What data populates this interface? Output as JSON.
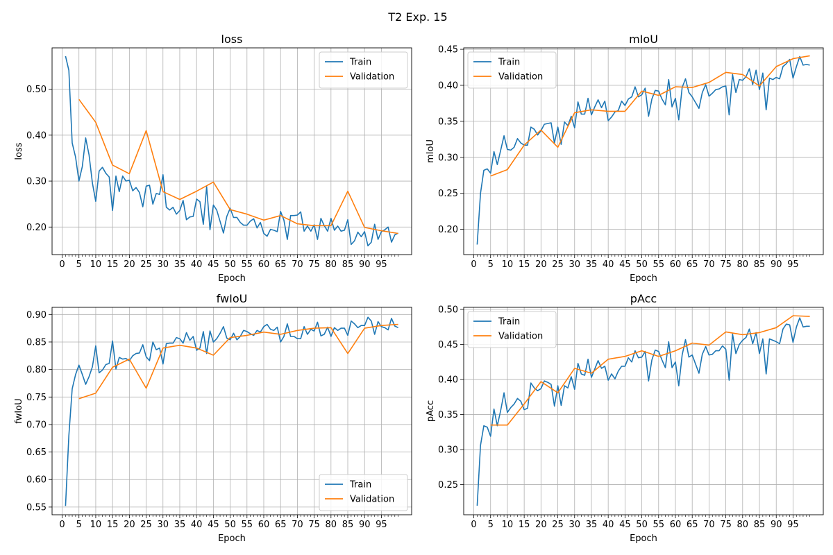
{
  "figure": {
    "title": "T2 Exp. 15"
  },
  "colors": {
    "train": "#1f77b4",
    "validation": "#ff7f0e",
    "grid": "#b0b0b0",
    "axis": "#000000"
  },
  "chart_data": [
    {
      "type": "line",
      "title": "loss",
      "xlabel": "Epoch",
      "ylabel": "loss",
      "grid": true,
      "legend": "top-right",
      "xlim": [
        -3,
        104
      ],
      "ylim": [
        0.14,
        0.59
      ],
      "xticks": [
        0,
        5,
        10,
        15,
        20,
        25,
        30,
        35,
        40,
        45,
        50,
        55,
        60,
        65,
        70,
        75,
        80,
        85,
        90,
        95
      ],
      "yticks": [
        0.2,
        0.3,
        0.4,
        0.5
      ],
      "series": [
        {
          "name": "Train",
          "color": "#1f77b4",
          "x_start": 1,
          "values": [
            0.572,
            0.541,
            0.383,
            0.352,
            0.3,
            0.332,
            0.394,
            0.357,
            0.296,
            0.256,
            0.322,
            0.33,
            0.317,
            0.309,
            0.236,
            0.311,
            0.277,
            0.311,
            0.3,
            0.302,
            0.279,
            0.286,
            0.275,
            0.244,
            0.289,
            0.291,
            0.25,
            0.273,
            0.271,
            0.314,
            0.243,
            0.237,
            0.243,
            0.228,
            0.236,
            0.258,
            0.216,
            0.222,
            0.223,
            0.261,
            0.255,
            0.206,
            0.288,
            0.194,
            0.248,
            0.237,
            0.212,
            0.187,
            0.223,
            0.241,
            0.221,
            0.221,
            0.21,
            0.204,
            0.204,
            0.213,
            0.218,
            0.198,
            0.21,
            0.186,
            0.18,
            0.195,
            0.193,
            0.19,
            0.234,
            0.215,
            0.173,
            0.225,
            0.225,
            0.226,
            0.233,
            0.191,
            0.202,
            0.191,
            0.205,
            0.173,
            0.219,
            0.203,
            0.191,
            0.219,
            0.193,
            0.202,
            0.191,
            0.193,
            0.216,
            0.162,
            0.17,
            0.189,
            0.179,
            0.19,
            0.159,
            0.167,
            0.206,
            0.173,
            0.19,
            0.194,
            0.2,
            0.167,
            0.183,
            0.187
          ]
        },
        {
          "name": "Validation",
          "color": "#ff7f0e",
          "x": [
            5,
            10,
            15,
            20,
            25,
            30,
            35,
            40,
            45,
            50,
            55,
            60,
            65,
            70,
            75,
            80,
            85,
            90,
            95,
            100
          ],
          "values": [
            0.478,
            0.428,
            0.335,
            0.316,
            0.41,
            0.277,
            0.26,
            0.278,
            0.298,
            0.238,
            0.228,
            0.215,
            0.225,
            0.207,
            0.203,
            0.203,
            0.278,
            0.199,
            0.192,
            0.186
          ]
        }
      ]
    },
    {
      "type": "line",
      "title": "mIoU",
      "xlabel": "Epoch",
      "ylabel": "mIoU",
      "grid": true,
      "legend": "top-left",
      "xlim": [
        -3,
        104
      ],
      "ylim": [
        0.165,
        0.452
      ],
      "xticks": [
        0,
        5,
        10,
        15,
        20,
        25,
        30,
        35,
        40,
        45,
        50,
        55,
        60,
        65,
        70,
        75,
        80,
        85,
        90,
        95
      ],
      "yticks": [
        0.2,
        0.25,
        0.3,
        0.35,
        0.4,
        0.45
      ],
      "series": [
        {
          "name": "Train",
          "color": "#1f77b4",
          "x_start": 1,
          "values": [
            0.179,
            0.25,
            0.282,
            0.284,
            0.278,
            0.308,
            0.29,
            0.31,
            0.33,
            0.311,
            0.31,
            0.314,
            0.326,
            0.32,
            0.317,
            0.317,
            0.342,
            0.339,
            0.331,
            0.337,
            0.346,
            0.347,
            0.348,
            0.32,
            0.342,
            0.318,
            0.349,
            0.344,
            0.357,
            0.341,
            0.377,
            0.36,
            0.36,
            0.382,
            0.359,
            0.37,
            0.38,
            0.369,
            0.378,
            0.351,
            0.356,
            0.363,
            0.365,
            0.378,
            0.372,
            0.381,
            0.384,
            0.398,
            0.384,
            0.387,
            0.396,
            0.357,
            0.381,
            0.393,
            0.392,
            0.381,
            0.373,
            0.408,
            0.37,
            0.382,
            0.352,
            0.397,
            0.409,
            0.39,
            0.384,
            0.376,
            0.368,
            0.39,
            0.401,
            0.385,
            0.389,
            0.394,
            0.395,
            0.398,
            0.399,
            0.359,
            0.415,
            0.39,
            0.408,
            0.407,
            0.412,
            0.423,
            0.401,
            0.421,
            0.394,
            0.417,
            0.366,
            0.41,
            0.408,
            0.411,
            0.409,
            0.426,
            0.43,
            0.436,
            0.41,
            0.426,
            0.44,
            0.428,
            0.429,
            0.428
          ]
        },
        {
          "name": "Validation",
          "color": "#ff7f0e",
          "x": [
            5,
            10,
            15,
            20,
            25,
            30,
            35,
            40,
            45,
            50,
            55,
            60,
            65,
            70,
            75,
            80,
            85,
            90,
            95,
            100
          ],
          "values": [
            0.274,
            0.283,
            0.317,
            0.338,
            0.314,
            0.362,
            0.366,
            0.364,
            0.364,
            0.392,
            0.386,
            0.398,
            0.397,
            0.404,
            0.418,
            0.415,
            0.399,
            0.426,
            0.437,
            0.441
          ]
        }
      ]
    },
    {
      "type": "line",
      "title": "fwIoU",
      "xlabel": "Epoch",
      "ylabel": "fwIoU",
      "grid": true,
      "legend": "bottom-right",
      "xlim": [
        -3,
        104
      ],
      "ylim": [
        0.536,
        0.913
      ],
      "xticks": [
        0,
        5,
        10,
        15,
        20,
        25,
        30,
        35,
        40,
        45,
        50,
        55,
        60,
        65,
        70,
        75,
        80,
        85,
        90,
        95
      ],
      "yticks": [
        0.55,
        0.6,
        0.65,
        0.7,
        0.75,
        0.8,
        0.85,
        0.9
      ],
      "series": [
        {
          "name": "Train",
          "color": "#1f77b4",
          "x_start": 1,
          "values": [
            0.552,
            0.68,
            0.765,
            0.791,
            0.808,
            0.791,
            0.773,
            0.787,
            0.805,
            0.843,
            0.794,
            0.799,
            0.809,
            0.811,
            0.852,
            0.801,
            0.822,
            0.819,
            0.82,
            0.816,
            0.825,
            0.829,
            0.83,
            0.845,
            0.823,
            0.816,
            0.85,
            0.836,
            0.839,
            0.81,
            0.847,
            0.848,
            0.848,
            0.858,
            0.856,
            0.848,
            0.867,
            0.853,
            0.86,
            0.835,
            0.839,
            0.869,
            0.829,
            0.87,
            0.85,
            0.856,
            0.866,
            0.878,
            0.857,
            0.854,
            0.866,
            0.854,
            0.86,
            0.871,
            0.869,
            0.865,
            0.862,
            0.871,
            0.868,
            0.878,
            0.882,
            0.873,
            0.871,
            0.877,
            0.85,
            0.86,
            0.883,
            0.86,
            0.86,
            0.856,
            0.856,
            0.878,
            0.864,
            0.873,
            0.87,
            0.886,
            0.861,
            0.864,
            0.877,
            0.86,
            0.876,
            0.871,
            0.875,
            0.875,
            0.862,
            0.888,
            0.883,
            0.876,
            0.88,
            0.88,
            0.895,
            0.888,
            0.864,
            0.887,
            0.878,
            0.876,
            0.872,
            0.893,
            0.879,
            0.876
          ]
        },
        {
          "name": "Validation",
          "color": "#ff7f0e",
          "x": [
            5,
            10,
            15,
            20,
            25,
            30,
            35,
            40,
            45,
            50,
            55,
            60,
            65,
            70,
            75,
            80,
            85,
            90,
            95,
            100
          ],
          "values": [
            0.747,
            0.757,
            0.804,
            0.819,
            0.766,
            0.839,
            0.844,
            0.839,
            0.826,
            0.858,
            0.862,
            0.868,
            0.864,
            0.871,
            0.875,
            0.876,
            0.829,
            0.875,
            0.88,
            0.882
          ]
        }
      ]
    },
    {
      "type": "line",
      "title": "pAcc",
      "xlabel": "Epoch",
      "ylabel": "pAcc",
      "grid": true,
      "legend": "top-left",
      "xlim": [
        -3,
        104
      ],
      "ylim": [
        0.207,
        0.503
      ],
      "xticks": [
        0,
        5,
        10,
        15,
        20,
        25,
        30,
        35,
        40,
        45,
        50,
        55,
        60,
        65,
        70,
        75,
        80,
        85,
        90,
        95
      ],
      "yticks": [
        0.25,
        0.3,
        0.35,
        0.4,
        0.45,
        0.5
      ],
      "series": [
        {
          "name": "Train",
          "color": "#1f77b4",
          "x_start": 1,
          "values": [
            0.22,
            0.306,
            0.334,
            0.332,
            0.319,
            0.358,
            0.334,
            0.356,
            0.381,
            0.353,
            0.36,
            0.365,
            0.373,
            0.369,
            0.357,
            0.359,
            0.395,
            0.388,
            0.384,
            0.387,
            0.398,
            0.396,
            0.393,
            0.362,
            0.391,
            0.363,
            0.391,
            0.388,
            0.404,
            0.386,
            0.423,
            0.408,
            0.406,
            0.429,
            0.403,
            0.415,
            0.427,
            0.416,
            0.419,
            0.399,
            0.408,
            0.401,
            0.412,
            0.419,
            0.419,
            0.431,
            0.425,
            0.441,
            0.431,
            0.432,
            0.44,
            0.398,
            0.428,
            0.442,
            0.44,
            0.428,
            0.417,
            0.454,
            0.417,
            0.425,
            0.391,
            0.435,
            0.457,
            0.432,
            0.435,
            0.422,
            0.409,
            0.436,
            0.447,
            0.435,
            0.436,
            0.441,
            0.441,
            0.448,
            0.443,
            0.399,
            0.465,
            0.437,
            0.45,
            0.456,
            0.46,
            0.472,
            0.451,
            0.467,
            0.437,
            0.458,
            0.408,
            0.458,
            0.456,
            0.454,
            0.451,
            0.472,
            0.479,
            0.478,
            0.453,
            0.475,
            0.488,
            0.475,
            0.476,
            0.476
          ]
        },
        {
          "name": "Validation",
          "color": "#ff7f0e",
          "x": [
            5,
            10,
            15,
            20,
            25,
            30,
            35,
            40,
            45,
            50,
            55,
            60,
            65,
            70,
            75,
            80,
            85,
            90,
            95,
            100
          ],
          "values": [
            0.335,
            0.335,
            0.365,
            0.397,
            0.381,
            0.416,
            0.409,
            0.429,
            0.433,
            0.441,
            0.433,
            0.441,
            0.452,
            0.449,
            0.468,
            0.464,
            0.467,
            0.474,
            0.491,
            0.49
          ]
        }
      ]
    }
  ]
}
